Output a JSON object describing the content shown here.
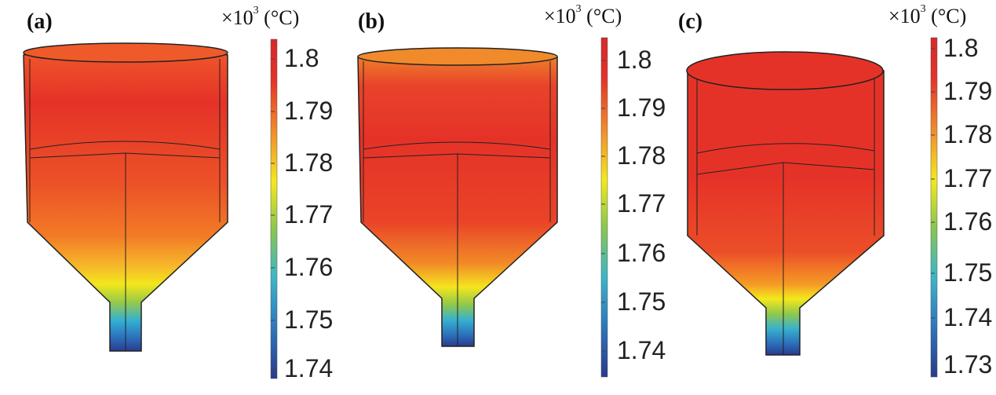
{
  "panels": [
    {
      "label": "(a)",
      "unit_prefix": "×10",
      "unit_exponent": "3",
      "unit_suffix": " (°C)",
      "colorbar_ticks": [
        "1.8",
        "1.79",
        "1.78",
        "1.77",
        "1.76",
        "1.75",
        "1.74"
      ]
    },
    {
      "label": "(b)",
      "unit_prefix": "×10",
      "unit_exponent": "3",
      "unit_suffix": " (°C)",
      "colorbar_ticks": [
        "1.8",
        "1.79",
        "1.78",
        "1.77",
        "1.76",
        "1.75",
        "1.74"
      ]
    },
    {
      "label": "(c)",
      "unit_prefix": "×10",
      "unit_exponent": "3",
      "unit_suffix": " (°C)",
      "colorbar_ticks": [
        "1.8",
        "1.79",
        "1.78",
        "1.77",
        "1.76",
        "1.75",
        "1.74",
        "1.73"
      ]
    }
  ],
  "colors": {
    "hot": "#e53228",
    "warm": "#ef6a28",
    "orange": "#f59b25",
    "yellow": "#f4e81c",
    "green": "#8fc84a",
    "cyan": "#34b3cf",
    "blue": "#2c6db3",
    "dark_blue": "#273b8c",
    "outline": "#222222"
  }
}
